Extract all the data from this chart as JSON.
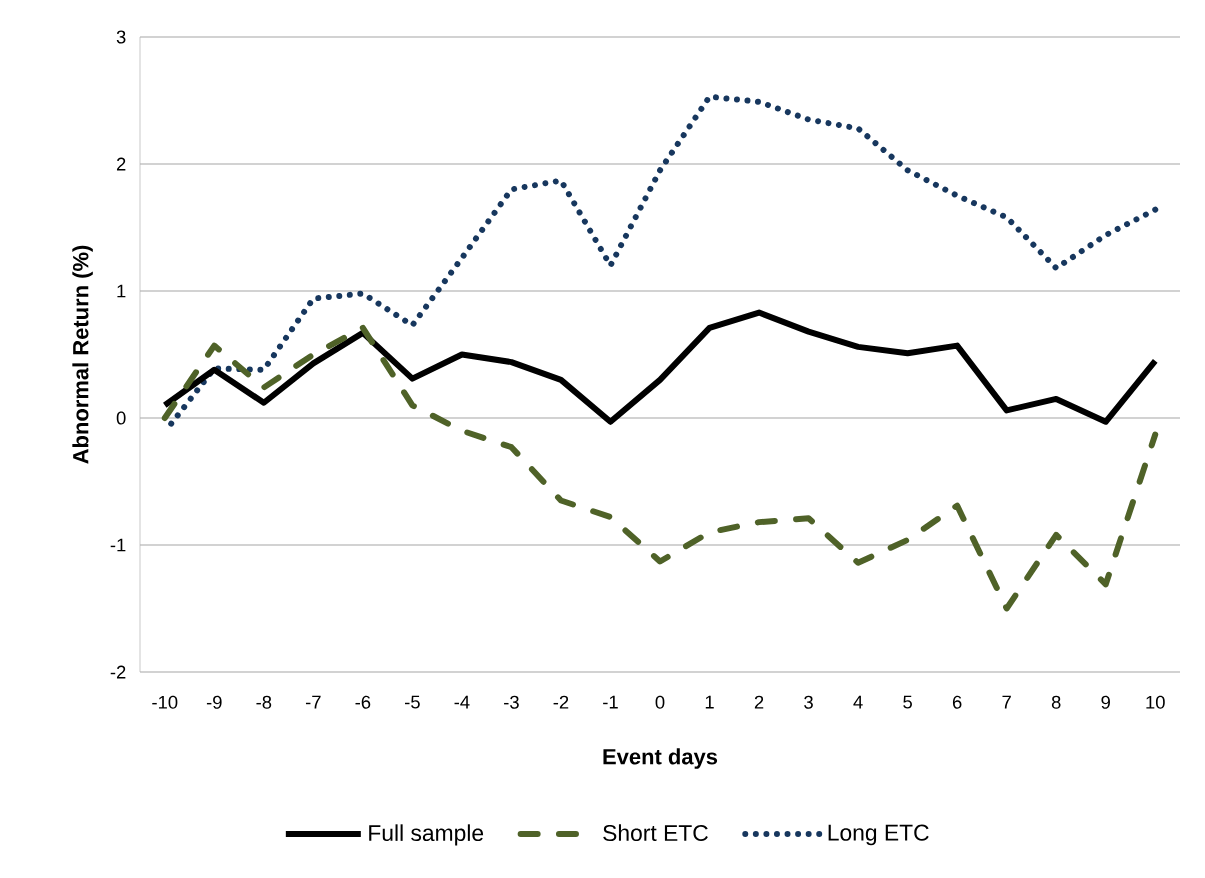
{
  "chart_data": {
    "type": "line",
    "xlabel": "Event days",
    "ylabel": "Abnormal Return (%)",
    "categories": [
      "-10",
      "-9",
      "-8",
      "-7",
      "-6",
      "-5",
      "-4",
      "-3",
      "-2",
      "-1",
      "0",
      "1",
      "2",
      "3",
      "4",
      "5",
      "6",
      "7",
      "8",
      "9",
      "10"
    ],
    "series": [
      {
        "name": "Full sample",
        "color": "#000000",
        "line_style": "solid",
        "values": [
          0.1,
          0.38,
          0.12,
          0.43,
          0.67,
          0.31,
          0.5,
          0.44,
          0.3,
          -0.03,
          0.3,
          0.71,
          0.83,
          0.68,
          0.56,
          0.51,
          0.57,
          0.06,
          0.15,
          -0.03,
          0.45
        ]
      },
      {
        "name": "Short ETC",
        "color": "#4f6228",
        "line_style": "dashed",
        "values": [
          0.0,
          0.57,
          0.24,
          0.5,
          0.71,
          0.1,
          -0.1,
          -0.23,
          -0.65,
          -0.78,
          -1.13,
          -0.9,
          -0.82,
          -0.79,
          -1.14,
          -0.96,
          -0.69,
          -1.5,
          -0.92,
          -1.31,
          -0.13
        ]
      },
      {
        "name": "Long ETC",
        "color": "#17375e",
        "line_style": "dotted",
        "values": [
          -0.11,
          0.39,
          0.38,
          0.94,
          0.98,
          0.73,
          1.26,
          1.8,
          1.87,
          1.2,
          1.95,
          2.53,
          2.49,
          2.35,
          2.28,
          1.95,
          1.75,
          1.58,
          1.18,
          1.44,
          1.64
        ]
      }
    ],
    "ylim": [
      -2,
      3
    ],
    "yticks": [
      -2,
      -1,
      0,
      1,
      2,
      3
    ],
    "grid": "y",
    "legend": "bottom",
    "marker": "none"
  }
}
